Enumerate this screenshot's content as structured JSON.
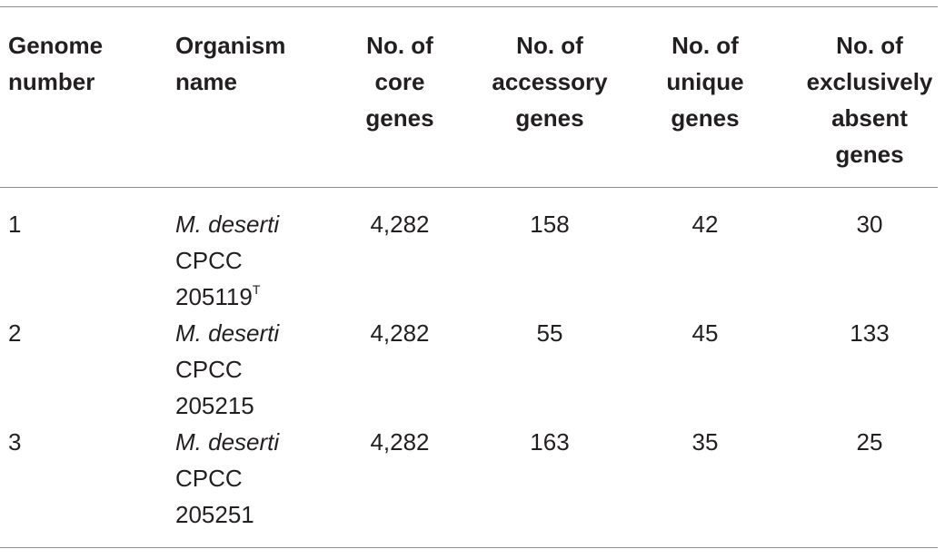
{
  "headers": [
    [
      "Genome",
      "number"
    ],
    [
      "Organism",
      "name"
    ],
    [
      "No. of",
      "core",
      "genes"
    ],
    [
      "No. of",
      "accessory",
      "genes"
    ],
    [
      "No. of",
      "unique",
      "genes"
    ],
    [
      "No. of",
      "exclusively",
      "absent",
      "genes"
    ]
  ],
  "rows": [
    {
      "genome_number": "1",
      "species": "M. deserti",
      "strain_prefix": "CPCC",
      "strain_number": "205119",
      "strain_superscript": "T",
      "core_genes": "4,282",
      "accessory_genes": "158",
      "unique_genes": "42",
      "exclusively_absent_genes": "30"
    },
    {
      "genome_number": "2",
      "species": "M. deserti",
      "strain_prefix": "CPCC",
      "strain_number": "205215",
      "strain_superscript": "",
      "core_genes": "4,282",
      "accessory_genes": "55",
      "unique_genes": "45",
      "exclusively_absent_genes": "133"
    },
    {
      "genome_number": "3",
      "species": "M. deserti",
      "strain_prefix": "CPCC",
      "strain_number": "205251",
      "strain_superscript": "",
      "core_genes": "4,282",
      "accessory_genes": "163",
      "unique_genes": "35",
      "exclusively_absent_genes": "25"
    }
  ]
}
